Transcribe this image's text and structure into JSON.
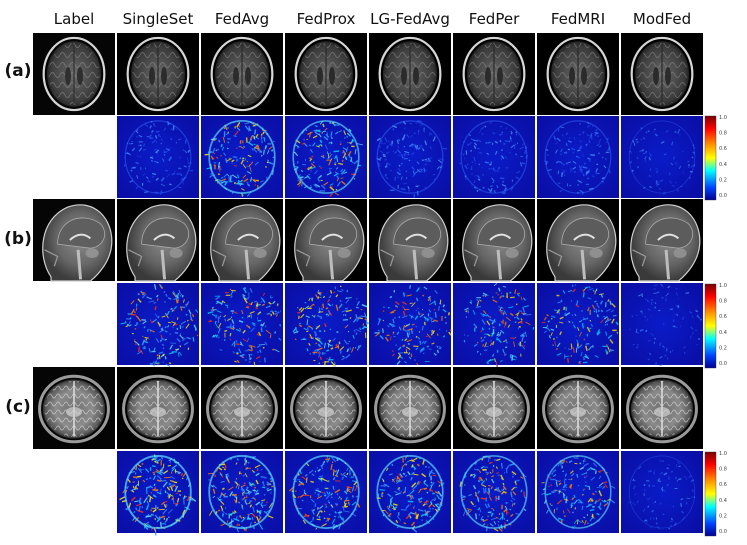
{
  "columns": [
    "Label",
    "SingleSet",
    "FedAvg",
    "FedProx",
    "LG-FedAvg",
    "FedPer",
    "FedMRI",
    "ModFed"
  ],
  "rows": [
    {
      "label": "(a)",
      "view": "axial",
      "error_levels": [
        0.45,
        0.8,
        0.75,
        0.5,
        0.45,
        0.45,
        0.2
      ]
    },
    {
      "label": "(b)",
      "view": "sagittal",
      "error_levels": [
        0.75,
        0.75,
        0.8,
        0.7,
        0.7,
        0.65,
        0.25
      ]
    },
    {
      "label": "(c)",
      "view": "axial-t2",
      "error_levels": [
        0.9,
        0.85,
        0.8,
        0.8,
        0.75,
        0.7,
        0.2
      ]
    }
  ],
  "colorbar": {
    "ticks": [
      "1.0",
      "0.8",
      "0.6",
      "0.4",
      "0.2",
      "0.0"
    ],
    "colors": [
      "#7a0000",
      "#ff0000",
      "#ff8000",
      "#ffff00",
      "#00ffff",
      "#0040ff",
      "#00008f"
    ]
  }
}
